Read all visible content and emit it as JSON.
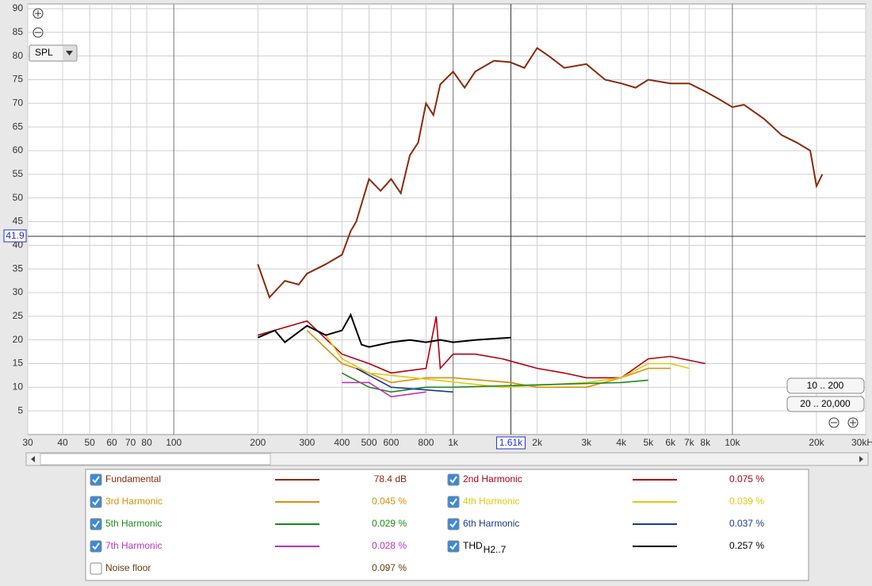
{
  "chart_data": {
    "type": "line",
    "log_x": true,
    "grid": true,
    "xlim": [
      30,
      30000
    ],
    "ylim": [
      0,
      91
    ],
    "xticks": [
      30,
      40,
      50,
      60,
      70,
      80,
      100,
      200,
      300,
      400,
      500,
      600,
      800,
      {
        "value": 1000,
        "label": "1k"
      },
      {
        "value": 2000,
        "label": "2k"
      },
      {
        "value": 3000,
        "label": "3k"
      },
      {
        "value": 4000,
        "label": "4k"
      },
      {
        "value": 5000,
        "label": "5k"
      },
      {
        "value": 6000,
        "label": "6k"
      },
      {
        "value": 7000,
        "label": "7k"
      },
      {
        "value": 8000,
        "label": "8k"
      },
      {
        "value": 10000,
        "label": "10k"
      },
      {
        "value": 20000,
        "label": "20k"
      },
      {
        "value": 30000,
        "label": "30kHz"
      }
    ],
    "yticks": [
      5,
      10,
      15,
      20,
      25,
      30,
      35,
      40,
      45,
      50,
      55,
      60,
      65,
      70,
      75,
      80,
      85,
      90
    ],
    "cursor": {
      "x": {
        "value": 1610,
        "label": "1.61k"
      },
      "y": 41.9
    },
    "controls": {
      "dropdown": "SPL",
      "buttons": [
        "10 .. 200",
        "20 .. 20,000"
      ]
    },
    "series": [
      {
        "name": "Fundamental",
        "color": "#8a2a0a",
        "visible": true,
        "readout": "78.4 dB",
        "x": [
          200,
          220,
          250,
          280,
          300,
          350,
          400,
          430,
          450,
          500,
          550,
          600,
          650,
          700,
          750,
          800,
          850,
          900,
          1000,
          1100,
          1200,
          1400,
          1600,
          1800,
          2000,
          2200,
          2500,
          3000,
          3500,
          4000,
          4500,
          5000,
          6000,
          7000,
          8000,
          9000,
          10000,
          11000,
          13000,
          15000,
          17000,
          19000,
          20000,
          21000
        ],
        "values": [
          36,
          29,
          32.5,
          31.7,
          34,
          36,
          38,
          43,
          45,
          54,
          51.5,
          54,
          51,
          59,
          61.7,
          70,
          67.5,
          74,
          76.7,
          73.3,
          76.7,
          79,
          78.7,
          77.5,
          81.7,
          80,
          77.5,
          78.3,
          75,
          74.2,
          73.3,
          75,
          74.2,
          74.2,
          72.5,
          70.8,
          69.2,
          69.7,
          66.7,
          63.3,
          61.7,
          60,
          52.5,
          55
        ]
      },
      {
        "name": "2nd Harmonic",
        "color": "#b00010",
        "visible": true,
        "readout": "0.075 %",
        "x": [
          200,
          300,
          400,
          500,
          600,
          800,
          870,
          900,
          1000,
          1200,
          1500,
          2000,
          2500,
          3000,
          4000,
          5000,
          6000,
          8000
        ],
        "values": [
          21,
          24,
          17,
          15,
          13,
          14,
          25,
          14,
          17,
          17,
          16,
          14,
          13,
          12,
          12,
          16,
          16.5,
          15
        ]
      },
      {
        "name": "3rd Harmonic",
        "color": "#d8900a",
        "visible": true,
        "readout": "0.045 %",
        "x": [
          300,
          400,
          500,
          600,
          800,
          1000,
          1600,
          2000,
          3000,
          4000,
          5000,
          6000
        ],
        "values": [
          22,
          15,
          13,
          11,
          12,
          12,
          11,
          10,
          10,
          12,
          14,
          14
        ]
      },
      {
        "name": "4th Harmonic",
        "color": "#e0c810",
        "visible": true,
        "readout": "0.039 %",
        "x": [
          350,
          400,
          500,
          1500,
          3000,
          4000,
          5000,
          6000,
          7000
        ],
        "values": [
          21,
          16,
          13,
          10,
          11,
          12,
          15,
          15,
          14
        ]
      },
      {
        "name": "5th Harmonic",
        "color": "#1a8a1a",
        "visible": true,
        "readout": "0.029 %",
        "x": [
          400,
          500,
          600,
          800,
          1000,
          4000,
          5000
        ],
        "values": [
          13,
          10,
          9,
          10,
          10,
          11,
          11.5
        ]
      },
      {
        "name": "6th Harmonic",
        "color": "#1a3a8a",
        "visible": true,
        "readout": "0.037 %",
        "x": [
          450,
          600,
          1000
        ],
        "values": [
          14,
          10,
          9
        ]
      },
      {
        "name": "7th Harmonic",
        "color": "#c030c0",
        "visible": true,
        "readout": "0.028 %",
        "x": [
          400,
          500,
          600,
          800
        ],
        "values": [
          11,
          11,
          8,
          9
        ]
      },
      {
        "name": "THD",
        "subscript": "H2..7",
        "color": "#000000",
        "visible": true,
        "readout": "0.257 %",
        "x": [
          200,
          230,
          250,
          300,
          350,
          400,
          430,
          470,
          500,
          600,
          700,
          800,
          900,
          1000,
          1200,
          1610
        ],
        "values": [
          20.5,
          22,
          19.5,
          23,
          21,
          22,
          25.3,
          19,
          18.5,
          19.5,
          20,
          19.5,
          20,
          19.5,
          20,
          20.5
        ]
      },
      {
        "name": "Noise floor",
        "color": "#6a3a10",
        "visible": false,
        "readout": "0.097 %",
        "x": [],
        "values": []
      }
    ]
  }
}
